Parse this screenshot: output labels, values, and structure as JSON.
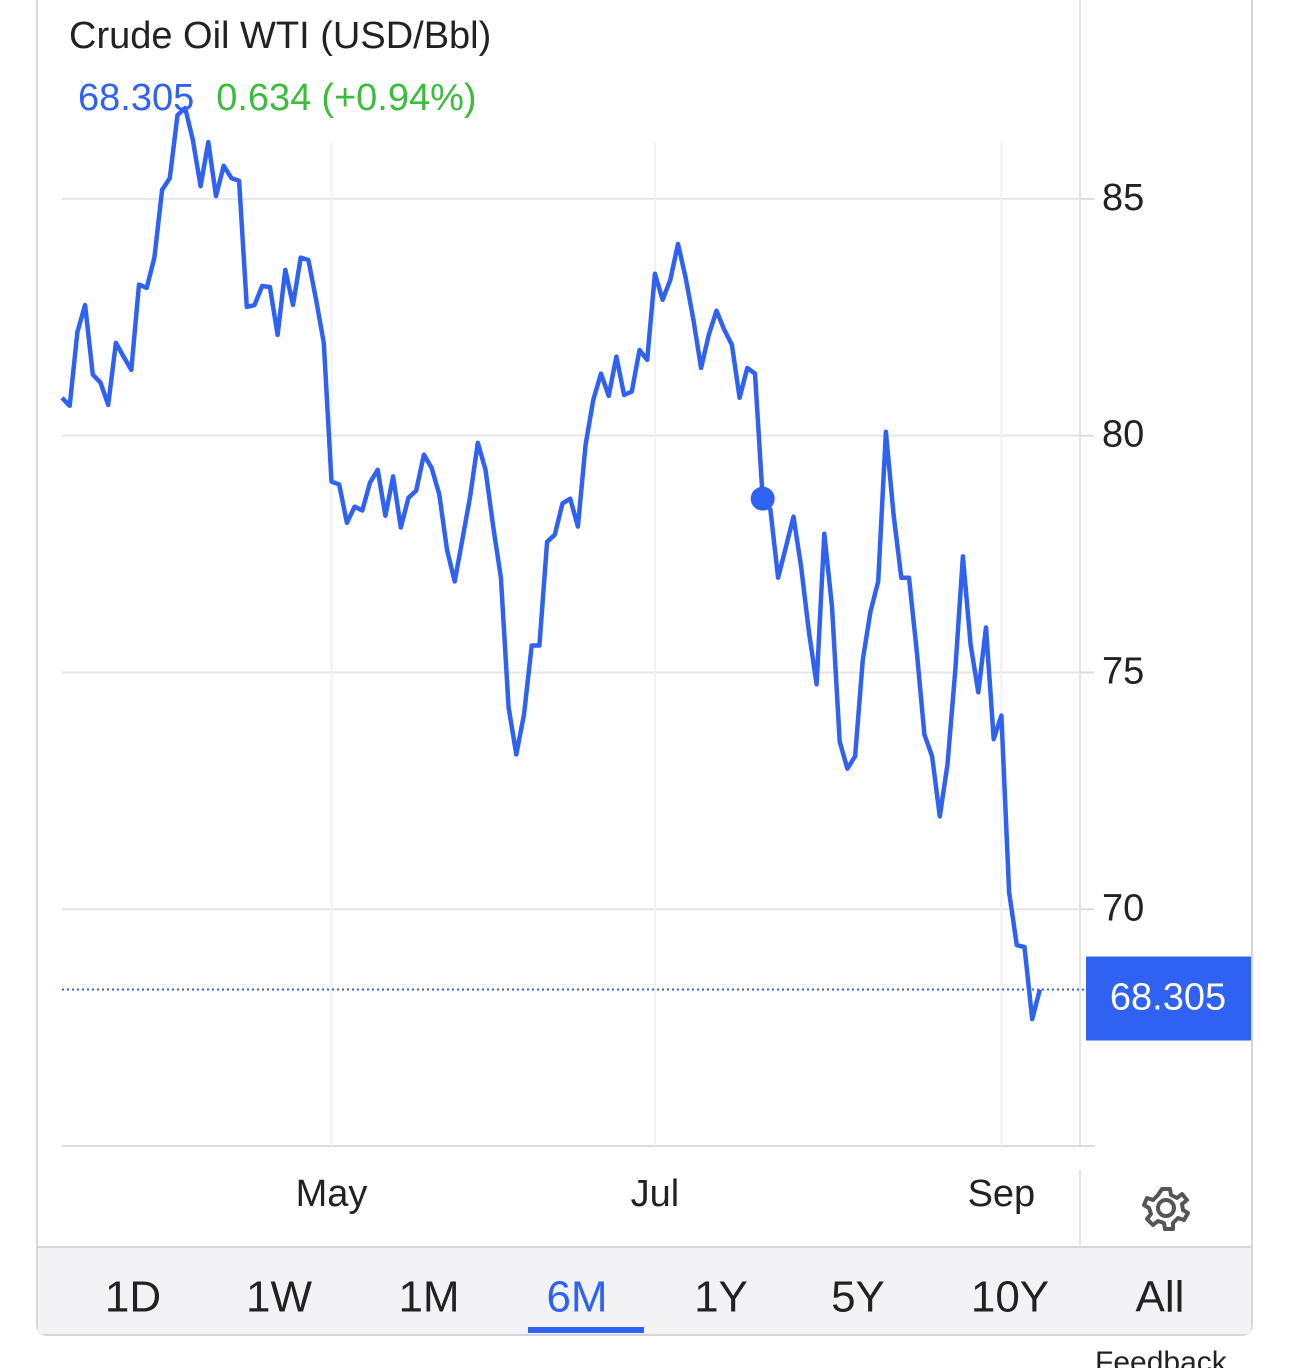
{
  "chart_data": {
    "type": "line",
    "title": "Crude Oil WTI (USD/Bbl)",
    "change": "0.634",
    "change_percent": "(+0.94%)",
    "categories": [
      null,
      null,
      null,
      null,
      null,
      null,
      null,
      null,
      null,
      null,
      null,
      null,
      null,
      null,
      null,
      null,
      null,
      null,
      null,
      null,
      null,
      null,
      null,
      null,
      null,
      null,
      null,
      null,
      null,
      null,
      null,
      null,
      null,
      null,
      null,
      "May",
      null,
      null,
      null,
      null,
      null,
      null,
      null,
      null,
      null,
      null,
      null,
      null,
      null,
      null,
      null,
      null,
      null,
      null,
      null,
      null,
      null,
      null,
      null,
      null,
      null,
      null,
      null,
      null,
      null,
      null,
      null,
      null,
      null,
      null,
      null,
      null,
      null,
      null,
      null,
      null,
      null,
      "Jul",
      null,
      null,
      null,
      null,
      null,
      null,
      null,
      null,
      null,
      null,
      null,
      null,
      null,
      null,
      null,
      null,
      null,
      null,
      null,
      null,
      null,
      null,
      null,
      null,
      null,
      null,
      null,
      null,
      null,
      null,
      null,
      null,
      null,
      null,
      null,
      null,
      null,
      null,
      null,
      null,
      null,
      null,
      null,
      null,
      "Sep",
      null,
      null,
      null,
      null,
      null
    ],
    "series": [
      {
        "name": "Crude Oil WTI",
        "color": "#2f62f2",
        "values": [
          80.8,
          80.63,
          82.19,
          82.76,
          81.29,
          81.12,
          80.65,
          81.96,
          81.67,
          81.39,
          83.19,
          83.12,
          83.76,
          85.19,
          85.44,
          86.77,
          86.92,
          86.24,
          85.27,
          86.2,
          85.06,
          85.7,
          85.44,
          85.38,
          82.72,
          82.76,
          83.16,
          83.14,
          82.13,
          83.5,
          82.76,
          83.76,
          83.71,
          82.87,
          81.96,
          79.03,
          78.97,
          78.16,
          78.5,
          78.42,
          79.01,
          79.28,
          78.31,
          79.14,
          78.06,
          78.69,
          78.84,
          79.6,
          79.32,
          78.76,
          77.59,
          76.92,
          77.81,
          78.71,
          79.85,
          79.28,
          78.08,
          77.0,
          74.26,
          73.27,
          74.11,
          75.57,
          75.57,
          77.76,
          77.91,
          78.57,
          78.67,
          78.08,
          79.81,
          80.76,
          81.31,
          80.84,
          81.67,
          80.86,
          80.93,
          81.81,
          81.6,
          83.42,
          82.87,
          83.29,
          84.05,
          83.33,
          82.45,
          81.43,
          82.13,
          82.64,
          82.24,
          81.92,
          80.8,
          81.43,
          81.31,
          78.67,
          78.44,
          77.0,
          77.64,
          78.29,
          77.22,
          75.86,
          74.75,
          77.93,
          76.39,
          73.54,
          72.97,
          73.23,
          75.27,
          76.29,
          76.92,
          80.08,
          78.33,
          77.0,
          77.0,
          75.46,
          73.69,
          73.23,
          71.96,
          73.06,
          75.02,
          77.45,
          75.59,
          74.58,
          75.95,
          73.59,
          74.09,
          70.36,
          69.24,
          69.2,
          67.68,
          68.305
        ]
      }
    ],
    "ylim": [
      65,
      87
    ],
    "yticks": [
      70,
      75,
      80,
      85
    ],
    "grid": true,
    "ranges": [
      "1D",
      "1W",
      "1M",
      "6M",
      "1Y",
      "5Y",
      "10Y",
      "All"
    ],
    "selected_range": "6M",
    "feedback": "Feedback"
  }
}
